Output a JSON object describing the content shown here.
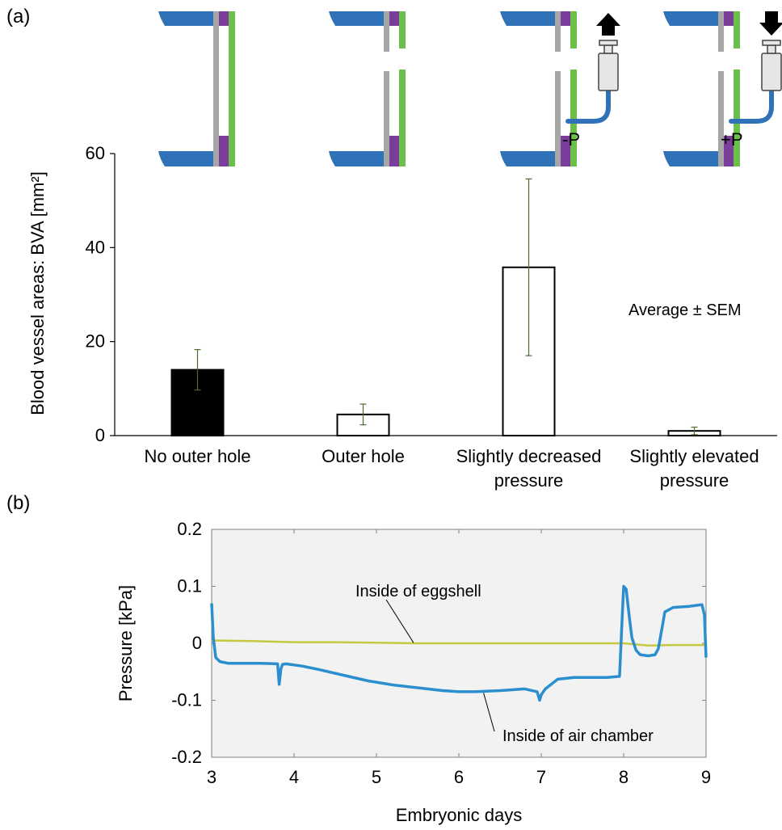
{
  "panel_labels": {
    "a": "(a)",
    "b": "(b)"
  },
  "colors": {
    "shell_blue": "#2f72b7",
    "membrane_gray": "#a6a6a6",
    "layer_purple": "#7a3d9a",
    "layer_green": "#6cc04a",
    "air_chamber_line": "#2b8fcf",
    "eggshell_line": "#c5c840",
    "plot_bg": "#f2f2f2",
    "bar_black": "#000000",
    "error_bar": "#4d6b2f"
  },
  "diagrams": {
    "decreased_label": "-P",
    "elevated_label": "+P",
    "decreased_arrow": "arrow-up-icon",
    "elevated_arrow": "arrow-down-icon",
    "syringe": "syringe-icon"
  },
  "annotations": {
    "sem": "Average ± SEM",
    "eggshell": "Inside of eggshell",
    "air_chamber": "Inside of air chamber"
  },
  "chart_data": [
    {
      "type": "bar",
      "ylabel": "Blood vessel areas: BVA [mm²]",
      "ylim": [
        0,
        60
      ],
      "yticks": [
        0,
        20,
        40,
        60
      ],
      "categories": [
        "No outer hole",
        "Outer hole",
        "Slightly decreased pressure",
        "Slightly elevated pressure"
      ],
      "category_lines": [
        [
          "No outer hole"
        ],
        [
          "Outer hole"
        ],
        [
          "Slightly decreased",
          "pressure"
        ],
        [
          "Slightly elevated",
          "pressure"
        ]
      ],
      "values": [
        14,
        4.5,
        35.8,
        1
      ],
      "errors": [
        4.3,
        2.2,
        18.8,
        0.8
      ],
      "fills": [
        "black",
        "white",
        "white",
        "white"
      ]
    },
    {
      "type": "line",
      "xlabel": "Embryonic days",
      "ylabel": "Pressure [kPa]",
      "xlim": [
        3,
        9
      ],
      "ylim": [
        -0.2,
        0.2
      ],
      "xticks": [
        3,
        4,
        5,
        6,
        7,
        8,
        9
      ],
      "yticks": [
        -0.2,
        -0.1,
        0,
        0.1,
        0.2
      ],
      "ytick_labels": [
        "-0.2",
        "-0.1",
        "0",
        "0.1",
        "0.2"
      ],
      "series": [
        {
          "key": "eggshell",
          "x": [
            3.0,
            3.5,
            4.0,
            4.5,
            5.0,
            5.5,
            6.0,
            6.5,
            7.0,
            7.5,
            8.0,
            8.3,
            8.6,
            9.0
          ],
          "y": [
            0.005,
            0.004,
            0.002,
            0.002,
            0.001,
            0.0,
            0.0,
            0.0,
            0.0,
            0.0,
            0.0,
            -0.004,
            -0.003,
            -0.003
          ]
        },
        {
          "key": "air_chamber",
          "x": [
            3.0,
            3.02,
            3.05,
            3.1,
            3.2,
            3.4,
            3.6,
            3.8,
            3.82,
            3.84,
            3.86,
            3.9,
            4.1,
            4.3,
            4.6,
            4.9,
            5.2,
            5.5,
            5.8,
            6.0,
            6.2,
            6.5,
            6.8,
            6.95,
            6.98,
            7.0,
            7.05,
            7.2,
            7.4,
            7.6,
            7.8,
            7.95,
            7.98,
            8.0,
            8.03,
            8.07,
            8.1,
            8.15,
            8.2,
            8.3,
            8.38,
            8.42,
            8.47,
            8.5,
            8.6,
            8.8,
            8.95,
            8.98,
            9.0
          ],
          "y": [
            0.07,
            0.01,
            -0.025,
            -0.032,
            -0.035,
            -0.035,
            -0.035,
            -0.036,
            -0.072,
            -0.045,
            -0.037,
            -0.036,
            -0.04,
            -0.046,
            -0.056,
            -0.066,
            -0.073,
            -0.078,
            -0.083,
            -0.085,
            -0.085,
            -0.083,
            -0.08,
            -0.085,
            -0.1,
            -0.09,
            -0.08,
            -0.063,
            -0.06,
            -0.06,
            -0.06,
            -0.058,
            0.04,
            0.1,
            0.095,
            0.045,
            0.01,
            -0.012,
            -0.02,
            -0.022,
            -0.02,
            -0.01,
            0.03,
            0.055,
            0.063,
            0.065,
            0.068,
            0.05,
            -0.025
          ]
        }
      ]
    }
  ]
}
